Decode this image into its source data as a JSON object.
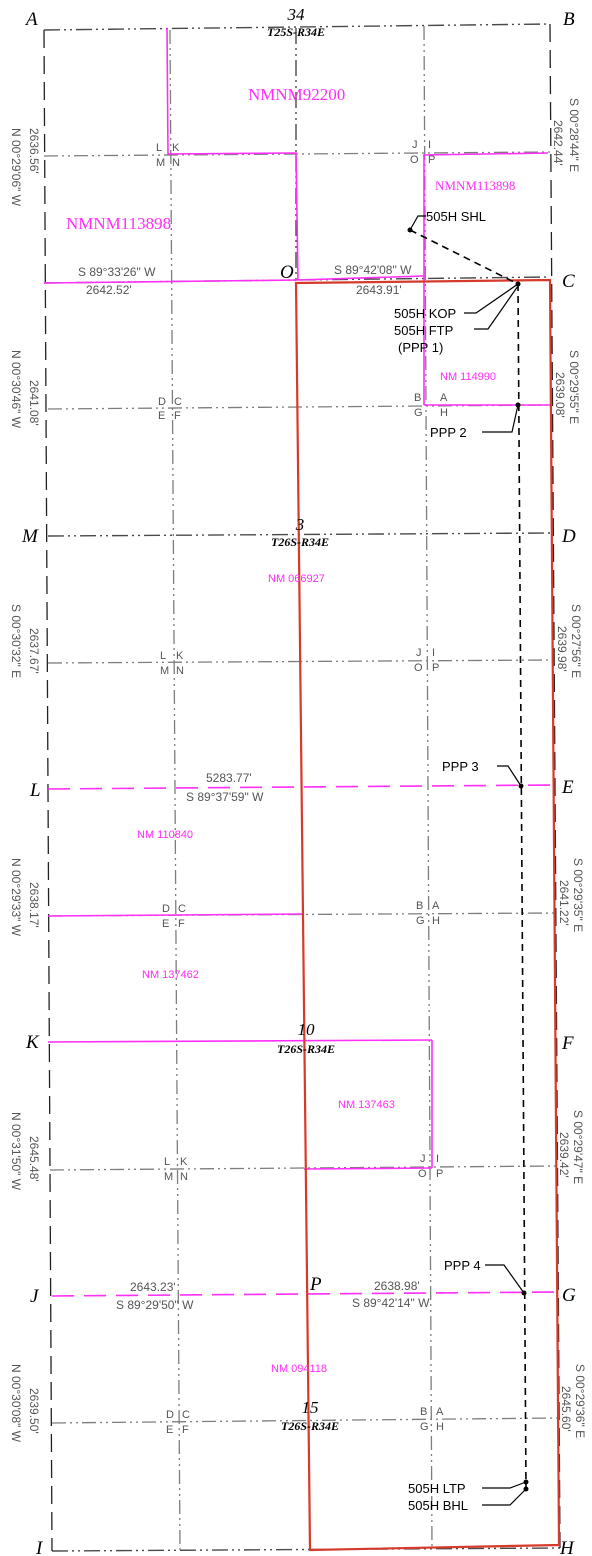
{
  "corners": {
    "A": "A",
    "B": "B",
    "C": "C",
    "D": "D",
    "E": "E",
    "F": "F",
    "G": "G",
    "H": "H",
    "I": "I",
    "J": "J",
    "K": "K",
    "L": "L",
    "M": "M",
    "O": "O",
    "P": "P"
  },
  "sections": [
    {
      "number": "34",
      "twp": "T25S-R34E"
    },
    {
      "number": "3",
      "twp": "T26S-R34E"
    },
    {
      "number": "10",
      "twp": "T26S-R34E"
    },
    {
      "number": "15",
      "twp": "T26S-R34E"
    }
  ],
  "leases": [
    "NMNM92200",
    "NMNM113898",
    "NMNM113898",
    "NM 114990",
    "NM 066927",
    "NM 110840",
    "NM 137462",
    "NM 137463",
    "NM 094118"
  ],
  "calls": {
    "c34_left_dist": "2636.56'",
    "c34_left_brg": "N 00°29'06\" W",
    "c34_right_dist": "2642.44'",
    "c34_right_brg": "S 00°28'44\" E",
    "c34_bot_left_brg": "S 89°33'26\" W",
    "c34_bot_left_dist": "2642.52'",
    "c34_bot_right_brg": "S 89°42'08\" W",
    "c34_bot_right_dist": "2643.91'",
    "c3n_left_dist": "2641.08'",
    "c3n_left_brg": "N 00°30'46\" W",
    "c3n_right_brg": "S 00°29'55\" E",
    "c3n_right_dist": "2639.08'",
    "c3s_left_brg": "S 00°30'32\" E",
    "c3s_left_dist": "2637.67'",
    "c3s_right_brg": "S 00°27'56\" E",
    "c3s_right_dist": "2639.98'",
    "L_line_dist": "5283.77'",
    "L_line_brg": "S 89°37'59\" W",
    "c10n_left_dist": "2638.17'",
    "c10n_left_brg": "N 00°29'33\" W",
    "c10n_right_brg": "S 00°29'35\" E",
    "c10n_right_dist": "2641.22'",
    "c10s_left_brg": "N 00°31'50\" W",
    "c10s_left_dist": "2645.48'",
    "c10s_right_brg": "S 00°29'47\" E",
    "c10s_right_dist": "2639.42'",
    "J_left_dist": "2643.23'",
    "J_left_brg": "S 89°29'50\" W",
    "J_right_dist": "2638.98'",
    "J_right_brg": "S 89°42'14\" W",
    "c15_left_brg": "N 00°30'08\" W",
    "c15_left_dist": "2639.50'",
    "c15_right_brg": "S 00°29'36\" E",
    "c15_right_dist": "2645.60'"
  },
  "well": {
    "shl": "505H SHL",
    "kop": "505H KOP",
    "ftp": "505H FTP",
    "ppp1": "(PPP 1)",
    "ppp2": "PPP 2",
    "ppp3": "PPP 3",
    "ppp4": "PPP 4",
    "ltp": "505H LTP",
    "bhl": "505H BHL"
  },
  "qq": {
    "L": "L",
    "K": "K",
    "M": "M",
    "N": "N",
    "J": "J",
    "I": "I",
    "O": "O",
    "P": "P",
    "D": "D",
    "C": "C",
    "E": "E",
    "F": "F",
    "B": "B",
    "A": "A",
    "G": "G",
    "H": "H"
  },
  "colors": {
    "lease": "#ff2ef8",
    "unit": "#d63a2b",
    "line": "#4a4a4a"
  }
}
